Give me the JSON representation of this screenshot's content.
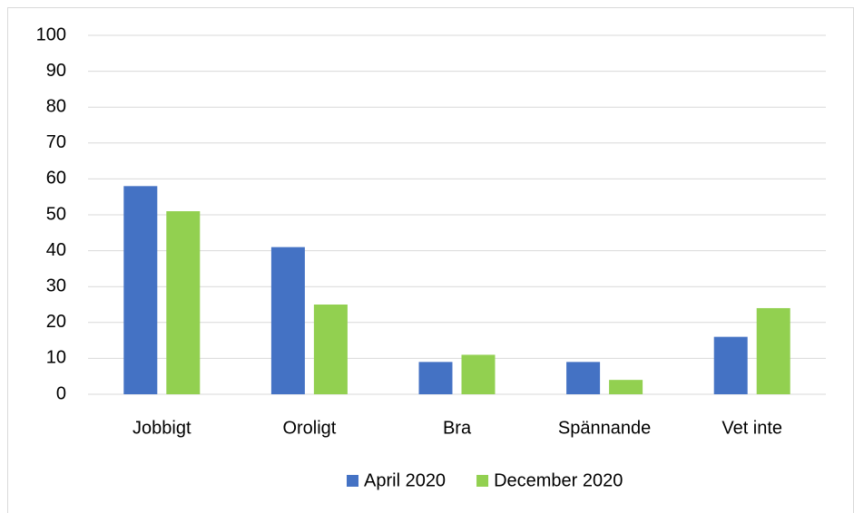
{
  "chart_data": {
    "type": "bar",
    "categories": [
      "Jobbigt",
      "Oroligt",
      "Bra",
      "Spännande",
      "Vet inte"
    ],
    "series": [
      {
        "name": "April 2020",
        "color": "#4472c4",
        "values": [
          58,
          41,
          9,
          9,
          16
        ]
      },
      {
        "name": "December 2020",
        "color": "#92d050",
        "values": [
          51,
          25,
          11,
          4,
          24
        ]
      }
    ],
    "ylim": [
      0,
      100
    ],
    "yticks": [
      0,
      10,
      20,
      30,
      40,
      50,
      60,
      70,
      80,
      90,
      100
    ],
    "grid": true,
    "legend": "bottom"
  }
}
